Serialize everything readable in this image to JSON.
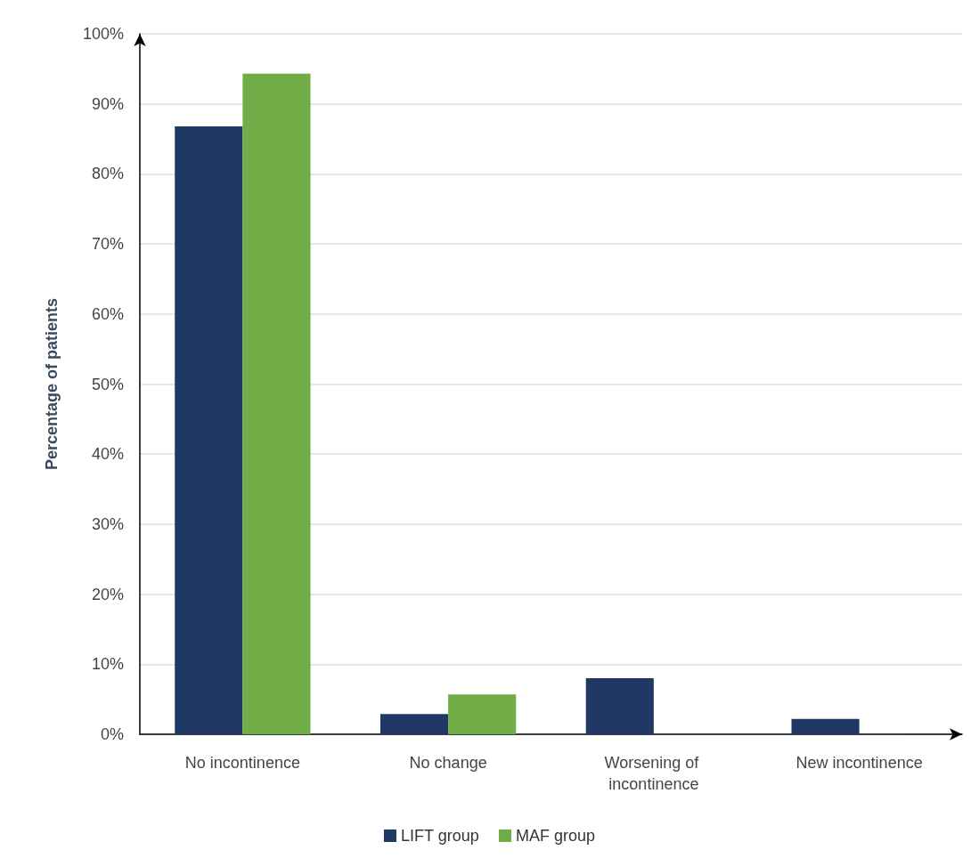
{
  "chart_data": {
    "type": "bar",
    "categories": [
      "No incontinence",
      "No change",
      "Worsening of incontinence",
      "New incontinence"
    ],
    "series": [
      {
        "name": "LIFT group",
        "color": "#1f3864",
        "values": [
          86.8,
          2.9,
          8.0,
          2.2
        ]
      },
      {
        "name": "MAF group",
        "color": "#70ad47",
        "values": [
          94.3,
          5.7,
          0,
          0
        ]
      }
    ],
    "ylabel": "Percentage of patients",
    "ylim": [
      0,
      100
    ],
    "yticks": [
      {
        "value": 0,
        "label": "0%"
      },
      {
        "value": 10,
        "label": "10%"
      },
      {
        "value": 20,
        "label": "20%"
      },
      {
        "value": 30,
        "label": "30%"
      },
      {
        "value": 40,
        "label": "40%"
      },
      {
        "value": 50,
        "label": "50%"
      },
      {
        "value": 60,
        "label": "60%"
      },
      {
        "value": 70,
        "label": "70%"
      },
      {
        "value": 80,
        "label": "80%"
      },
      {
        "value": 90,
        "label": "90%"
      },
      {
        "value": 100,
        "label": "100%"
      }
    ],
    "grid": "y",
    "legend": "bottom"
  }
}
